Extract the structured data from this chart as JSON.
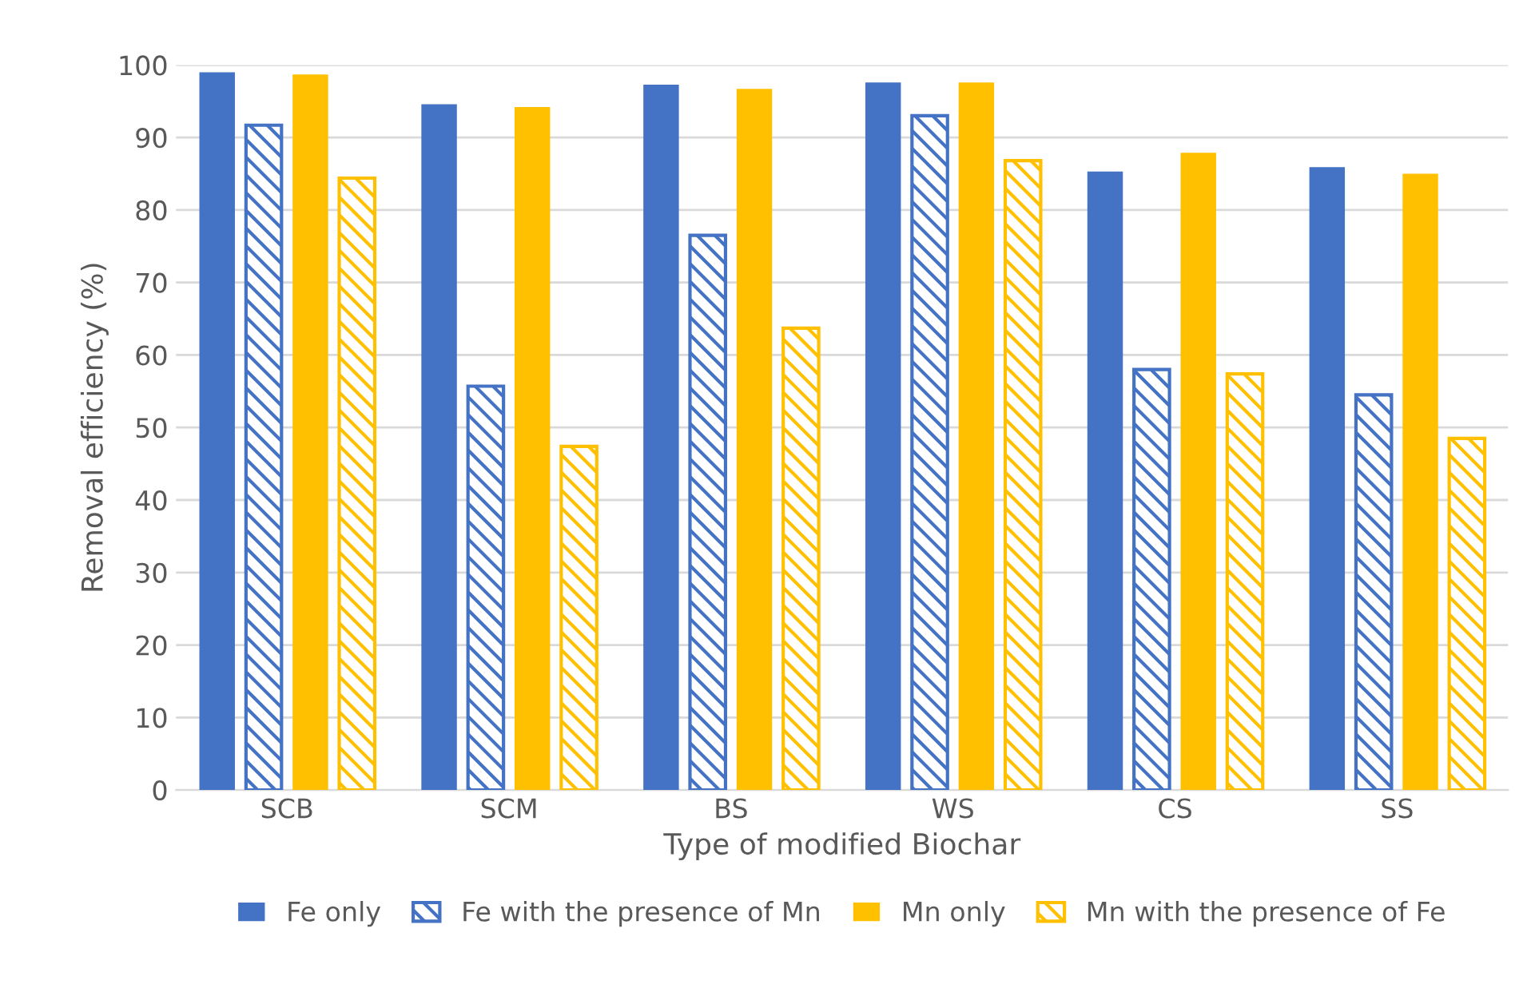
{
  "chart_data": {
    "type": "bar",
    "xlabel": "Type of modified Biochar",
    "ylabel": "Removal efficiency (%)",
    "categories": [
      "SCB",
      "SCM",
      "BS",
      "WS",
      "CS",
      "SS"
    ],
    "series": [
      {
        "name": "Fe only",
        "color": "#4472c4",
        "values": [
          99.0,
          94.6,
          97.3,
          97.6,
          85.3,
          85.9
        ]
      },
      {
        "name": "Fe with the presence of Mn",
        "color": "#4472c4",
        "values": [
          91.7,
          55.7,
          76.5,
          93.0,
          58.0,
          54.5
        ]
      },
      {
        "name": "Mn only",
        "color": "#ffc000",
        "values": [
          98.7,
          94.2,
          96.7,
          97.6,
          87.9,
          85.0
        ]
      },
      {
        "name": "Mn with the presence of Fe",
        "color": "#ffc000",
        "values": [
          84.4,
          47.4,
          63.7,
          86.8,
          57.4,
          48.5
        ]
      }
    ],
    "ylim": [
      0,
      100
    ],
    "yticks": [
      0,
      10,
      20,
      30,
      40,
      50,
      60,
      70,
      80,
      90,
      100
    ],
    "grid": "y",
    "legend": "bottom"
  }
}
